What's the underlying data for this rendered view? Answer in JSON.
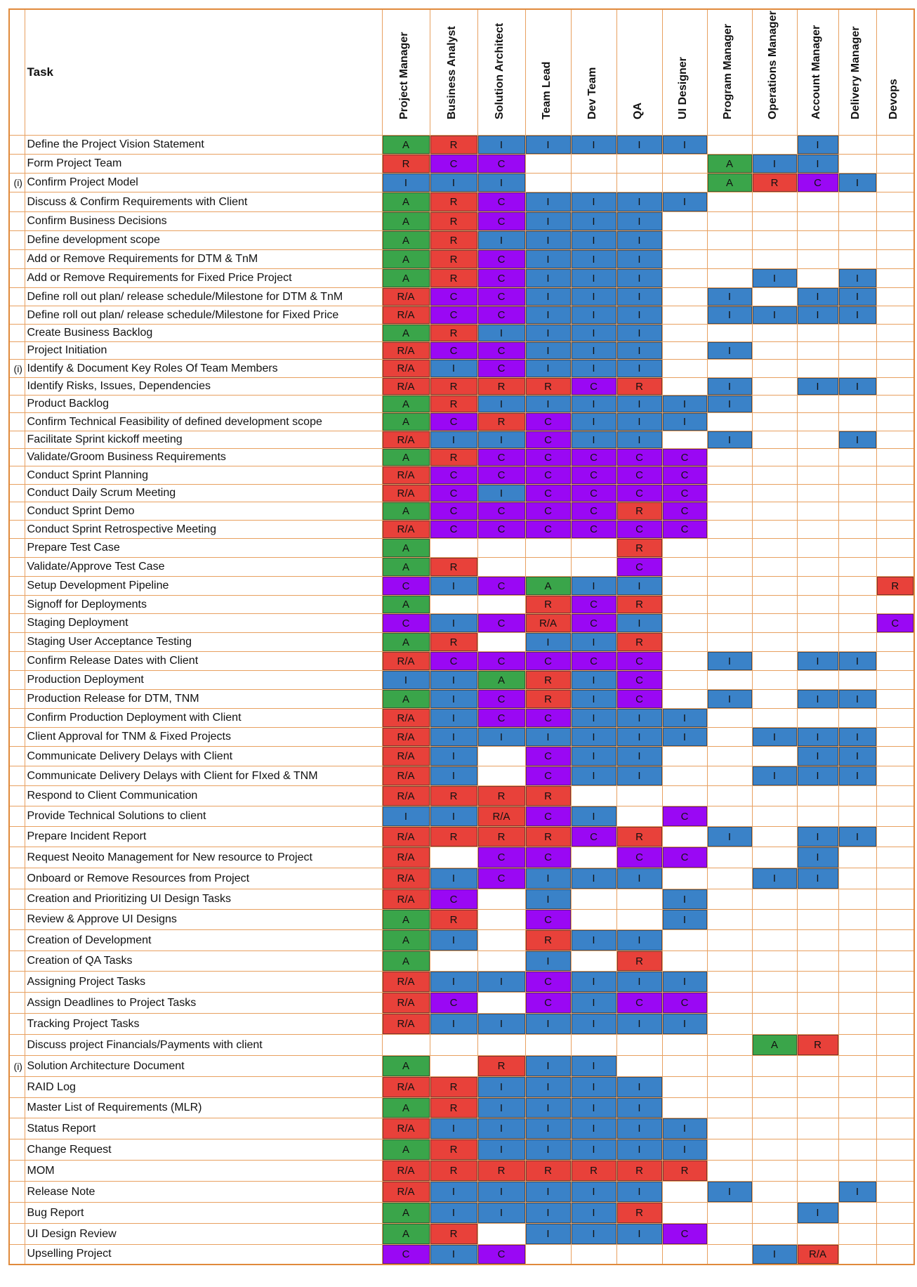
{
  "header": {
    "task_label": "Task",
    "roles": [
      "Project Manager",
      "Business Analyst",
      "Solution Architect",
      "Team Lead",
      "Dev Team",
      "QA",
      "UI Designer",
      "Program Manager",
      "Operations Manager",
      "Account Manager",
      "Delivery Manager",
      "Devops"
    ]
  },
  "legend_colors": {
    "A": "#3aa54a",
    "R": "#e8413a",
    "R/A": "#e8413a",
    "C": "#9a08f4",
    "I": "#3a82c8"
  },
  "rows": [
    {
      "mark": "",
      "task": "Define the Project Vision Statement",
      "v": [
        "A",
        "R",
        "I",
        "I",
        "I",
        "I",
        "I",
        "",
        "",
        "I",
        "",
        ""
      ]
    },
    {
      "mark": "",
      "task": "Form Project Team",
      "v": [
        "R",
        "C",
        "C",
        "",
        "",
        "",
        "",
        "A",
        "I",
        "I",
        "",
        ""
      ]
    },
    {
      "mark": "(i)",
      "task": "Confirm Project Model",
      "v": [
        "I",
        "I",
        "I",
        "",
        "",
        "",
        "",
        "A",
        "R",
        "C",
        "I",
        ""
      ]
    },
    {
      "mark": "",
      "task": "Discuss & Confirm Requirements with Client",
      "v": [
        "A",
        "R",
        "C",
        "I",
        "I",
        "I",
        "I",
        "",
        "",
        "",
        "",
        ""
      ]
    },
    {
      "mark": "",
      "task": "Confirm Business Decisions",
      "v": [
        "A",
        "R",
        "C",
        "I",
        "I",
        "I",
        "",
        "",
        "",
        "",
        "",
        ""
      ]
    },
    {
      "mark": "",
      "task": "Define development scope",
      "v": [
        "A",
        "R",
        "I",
        "I",
        "I",
        "I",
        "",
        "",
        "",
        "",
        "",
        ""
      ]
    },
    {
      "mark": "",
      "task": "Add or Remove Requirements for DTM & TnM",
      "v": [
        "A",
        "R",
        "C",
        "I",
        "I",
        "I",
        "",
        "",
        "",
        "",
        "",
        ""
      ]
    },
    {
      "mark": "",
      "task": "Add or Remove Requirements for Fixed Price Project",
      "v": [
        "A",
        "R",
        "C",
        "I",
        "I",
        "I",
        "",
        "",
        "I",
        "",
        "I",
        ""
      ]
    },
    {
      "mark": "",
      "task": "Define roll out plan/ release schedule/Milestone for DTM & TnM",
      "v": [
        "R/A",
        "C",
        "C",
        "I",
        "I",
        "I",
        "",
        "I",
        "",
        "I",
        "I",
        ""
      ]
    },
    {
      "mark": "",
      "task": "Define roll out plan/ release schedule/Milestone for Fixed Price",
      "v": [
        "R/A",
        "C",
        "C",
        "I",
        "I",
        "I",
        "",
        "I",
        "I",
        "I",
        "I",
        ""
      ]
    },
    {
      "mark": "",
      "task": "Create Business Backlog",
      "v": [
        "A",
        "R",
        "I",
        "I",
        "I",
        "I",
        "",
        "",
        "",
        "",
        "",
        ""
      ]
    },
    {
      "mark": "",
      "task": "Project Initiation",
      "v": [
        "R/A",
        "C",
        "C",
        "I",
        "I",
        "I",
        "",
        "I",
        "",
        "",
        "",
        ""
      ]
    },
    {
      "mark": "(i)",
      "task": "Identify & Document Key Roles Of Team Members",
      "v": [
        "R/A",
        "I",
        "C",
        "I",
        "I",
        "I",
        "",
        "",
        "",
        "",
        "",
        ""
      ]
    },
    {
      "mark": "",
      "task": "Identify Risks, Issues, Dependencies",
      "v": [
        "R/A",
        "R",
        "R",
        "R",
        "C",
        "R",
        "",
        "I",
        "",
        "I",
        "I",
        ""
      ]
    },
    {
      "mark": "",
      "task": "Product Backlog",
      "v": [
        "A",
        "R",
        "I",
        "I",
        "I",
        "I",
        "I",
        "I",
        "",
        "",
        "",
        ""
      ]
    },
    {
      "mark": "",
      "task": "Confirm Technical Feasibility of defined development scope",
      "v": [
        "A",
        "C",
        "R",
        "C",
        "I",
        "I",
        "I",
        "",
        "",
        "",
        "",
        ""
      ]
    },
    {
      "mark": "",
      "task": "Facilitate Sprint kickoff meeting",
      "v": [
        "R/A",
        "I",
        "I",
        "C",
        "I",
        "I",
        "",
        "I",
        "",
        "",
        "I",
        ""
      ]
    },
    {
      "mark": "",
      "task": "Validate/Groom Business Requirements",
      "v": [
        "A",
        "R",
        "C",
        "C",
        "C",
        "C",
        "C",
        "",
        "",
        "",
        "",
        ""
      ]
    },
    {
      "mark": "",
      "task": "Conduct Sprint Planning",
      "v": [
        "R/A",
        "C",
        "C",
        "C",
        "C",
        "C",
        "C",
        "",
        "",
        "",
        "",
        ""
      ]
    },
    {
      "mark": "",
      "task": "Conduct Daily Scrum Meeting",
      "v": [
        "R/A",
        "C",
        "I",
        "C",
        "C",
        "C",
        "C",
        "",
        "",
        "",
        "",
        ""
      ]
    },
    {
      "mark": "",
      "task": "Conduct Sprint Demo",
      "v": [
        "A",
        "C",
        "C",
        "C",
        "C",
        "R",
        "C",
        "",
        "",
        "",
        "",
        ""
      ]
    },
    {
      "mark": "",
      "task": "Conduct Sprint Retrospective Meeting",
      "v": [
        "R/A",
        "C",
        "C",
        "C",
        "C",
        "C",
        "C",
        "",
        "",
        "",
        "",
        ""
      ]
    },
    {
      "mark": "",
      "task": "Prepare Test Case",
      "v": [
        "A",
        "",
        "",
        "",
        "",
        "R",
        "",
        "",
        "",
        "",
        "",
        ""
      ]
    },
    {
      "mark": "",
      "task": "Validate/Approve Test Case",
      "v": [
        "A",
        "R",
        "",
        "",
        "",
        "C",
        "",
        "",
        "",
        "",
        "",
        ""
      ]
    },
    {
      "mark": "",
      "task": "Setup Development Pipeline",
      "v": [
        "C",
        "I",
        "C",
        "A",
        "I",
        "I",
        "",
        "",
        "",
        "",
        "",
        "R"
      ]
    },
    {
      "mark": "",
      "task": "Signoff for Deployments",
      "v": [
        "A",
        "",
        "",
        "R",
        "C",
        "R",
        "",
        "",
        "",
        "",
        "",
        ""
      ]
    },
    {
      "mark": "",
      "task": "Staging Deployment",
      "v": [
        "C",
        "I",
        "C",
        "R/A",
        "C",
        "I",
        "",
        "",
        "",
        "",
        "",
        "C"
      ]
    },
    {
      "mark": "",
      "task": "Staging User Acceptance Testing",
      "v": [
        "A",
        "R",
        "",
        "I",
        "I",
        "R",
        "",
        "",
        "",
        "",
        "",
        ""
      ]
    },
    {
      "mark": "",
      "task": "Confirm Release Dates with Client",
      "v": [
        "R/A",
        "C",
        "C",
        "C",
        "C",
        "C",
        "",
        "I",
        "",
        "I",
        "I",
        ""
      ]
    },
    {
      "mark": "",
      "task": "Production Deployment",
      "v": [
        "I",
        "I",
        "A",
        "R",
        "I",
        "C",
        "",
        "",
        "",
        "",
        "",
        ""
      ]
    },
    {
      "mark": "",
      "task": "Production Release for DTM, TNM",
      "v": [
        "A",
        "I",
        "C",
        "R",
        "I",
        "C",
        "",
        "I",
        "",
        "I",
        "I",
        ""
      ]
    },
    {
      "mark": "",
      "task": "Confirm Production Deployment with Client",
      "v": [
        "R/A",
        "I",
        "C",
        "C",
        "I",
        "I",
        "I",
        "",
        "",
        "",
        "",
        ""
      ]
    },
    {
      "mark": "",
      "task": "Client Approval for TNM & Fixed Projects",
      "v": [
        "R/A",
        "I",
        "I",
        "I",
        "I",
        "I",
        "I",
        "",
        "I",
        "I",
        "I",
        ""
      ]
    },
    {
      "mark": "",
      "task": "Communicate Delivery Delays with Client",
      "v": [
        "R/A",
        "I",
        "",
        "C",
        "I",
        "I",
        "",
        "",
        "",
        "I",
        "I",
        ""
      ]
    },
    {
      "mark": "",
      "task": "Communicate Delivery Delays with Client for FIxed & TNM",
      "v": [
        "R/A",
        "I",
        "",
        "C",
        "I",
        "I",
        "",
        "",
        "I",
        "I",
        "I",
        ""
      ]
    },
    {
      "mark": "",
      "task": "Respond to Client Communication",
      "v": [
        "R/A",
        "R",
        "R",
        "R",
        "",
        "",
        "",
        "",
        "",
        "",
        "",
        ""
      ]
    },
    {
      "mark": "",
      "task": "Provide Technical Solutions to client",
      "v": [
        "I",
        "I",
        "R/A",
        "C",
        "I",
        "",
        "C",
        "",
        "",
        "",
        "",
        ""
      ]
    },
    {
      "mark": "",
      "task": "Prepare Incident Report",
      "v": [
        "R/A",
        "R",
        "R",
        "R",
        "C",
        "R",
        "",
        "I",
        "",
        "I",
        "I",
        ""
      ]
    },
    {
      "mark": "",
      "task": "Request Neoito Management for New resource to Project",
      "v": [
        "R/A",
        "",
        "C",
        "C",
        "",
        "C",
        "C",
        "",
        "",
        "I",
        "",
        ""
      ]
    },
    {
      "mark": "",
      "task": "Onboard or Remove Resources from Project",
      "v": [
        "R/A",
        "I",
        "C",
        "I",
        "I",
        "I",
        "",
        "",
        "I",
        "I",
        "",
        ""
      ]
    },
    {
      "mark": "",
      "task": "Creation and Prioritizing UI Design Tasks",
      "v": [
        "R/A",
        "C",
        "",
        "I",
        "",
        "",
        "I",
        "",
        "",
        "",
        "",
        ""
      ]
    },
    {
      "mark": "",
      "task": "Review & Approve UI Designs",
      "v": [
        "A",
        "R",
        "",
        "C",
        "",
        "",
        "I",
        "",
        "",
        "",
        "",
        ""
      ]
    },
    {
      "mark": "",
      "task": "Creation of Development",
      "v": [
        "A",
        "I",
        "",
        "R",
        "I",
        "I",
        "",
        "",
        "",
        "",
        "",
        ""
      ]
    },
    {
      "mark": "",
      "task": "Creation of QA Tasks",
      "v": [
        "A",
        "",
        "",
        "I",
        "",
        "R",
        "",
        "",
        "",
        "",
        "",
        ""
      ]
    },
    {
      "mark": "",
      "task": "Assigning Project Tasks",
      "v": [
        "R/A",
        "I",
        "I",
        "C",
        "I",
        "I",
        "I",
        "",
        "",
        "",
        "",
        ""
      ]
    },
    {
      "mark": "",
      "task": "Assign Deadlines to Project Tasks",
      "v": [
        "R/A",
        "C",
        "",
        "C",
        "I",
        "C",
        "C",
        "",
        "",
        "",
        "",
        ""
      ]
    },
    {
      "mark": "",
      "task": "Tracking Project Tasks",
      "v": [
        "R/A",
        "I",
        "I",
        "I",
        "I",
        "I",
        "I",
        "",
        "",
        "",
        "",
        ""
      ]
    },
    {
      "mark": "",
      "task": "Discuss project Financials/Payments with client",
      "v": [
        "",
        "",
        "",
        "",
        "",
        "",
        "",
        "",
        "A",
        "R",
        "",
        ""
      ]
    },
    {
      "mark": "(i)",
      "task": "Solution Architecture Document",
      "v": [
        "A",
        "",
        "R",
        "I",
        "I",
        "",
        "",
        "",
        "",
        "",
        "",
        ""
      ]
    },
    {
      "mark": "",
      "task": "RAID Log",
      "v": [
        "R/A",
        "R",
        "I",
        "I",
        "I",
        "I",
        "",
        "",
        "",
        "",
        "",
        ""
      ]
    },
    {
      "mark": "",
      "task": "Master List of Requirements (MLR)",
      "v": [
        "A",
        "R",
        "I",
        "I",
        "I",
        "I",
        "",
        "",
        "",
        "",
        "",
        ""
      ]
    },
    {
      "mark": "",
      "task": "Status Report",
      "v": [
        "R/A",
        "I",
        "I",
        "I",
        "I",
        "I",
        "I",
        "",
        "",
        "",
        "",
        ""
      ]
    },
    {
      "mark": "",
      "task": "Change Request",
      "v": [
        "A",
        "R",
        "I",
        "I",
        "I",
        "I",
        "I",
        "",
        "",
        "",
        "",
        ""
      ]
    },
    {
      "mark": "",
      "task": "MOM",
      "v": [
        "R/A",
        "R",
        "R",
        "R",
        "R",
        "R",
        "R",
        "",
        "",
        "",
        "",
        ""
      ]
    },
    {
      "mark": "",
      "task": "Release Note",
      "v": [
        "R/A",
        "I",
        "I",
        "I",
        "I",
        "I",
        "",
        "I",
        "",
        "",
        "I",
        ""
      ]
    },
    {
      "mark": "",
      "task": "Bug Report",
      "v": [
        "A",
        "I",
        "I",
        "I",
        "I",
        "R",
        "",
        "",
        "",
        "I",
        "",
        ""
      ]
    },
    {
      "mark": "",
      "task": "UI Design Review",
      "v": [
        "A",
        "R",
        "",
        "I",
        "I",
        "I",
        "C",
        "",
        "",
        "",
        "",
        ""
      ]
    },
    {
      "mark": "",
      "task": "Upselling Project",
      "v": [
        "C",
        "I",
        "C",
        "",
        "",
        "",
        "",
        "",
        "I",
        "R/A",
        "",
        ""
      ]
    }
  ]
}
